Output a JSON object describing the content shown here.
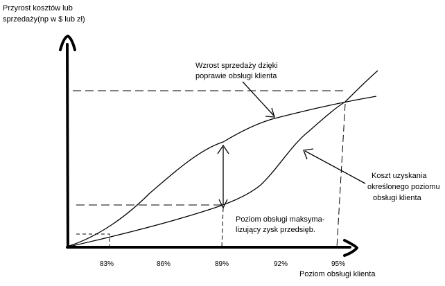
{
  "y_axis_title": {
    "line1": "Przyrost kosztów lub",
    "line2": "sprzedaży(np w $ lub zł)"
  },
  "x_axis_title": "Poziom obsługi klienta",
  "x_ticks": [
    "83%",
    "86%",
    "89%",
    "92%",
    "95%"
  ],
  "annotations": {
    "sales_growth": {
      "line1": "Wzrost sprzedaży dzięki",
      "line2": "poprawie obsługi klienta"
    },
    "cost": {
      "line1": "Koszt uzyskania",
      "line2": "określonego poziomu",
      "line3": "obsługi klienta"
    },
    "optimum": {
      "line1": "Poziom obsługi maksyma-",
      "line2": "lizujący zysk przedsięb."
    }
  },
  "colors": {
    "ink": "#000000",
    "background": "#ffffff"
  }
}
